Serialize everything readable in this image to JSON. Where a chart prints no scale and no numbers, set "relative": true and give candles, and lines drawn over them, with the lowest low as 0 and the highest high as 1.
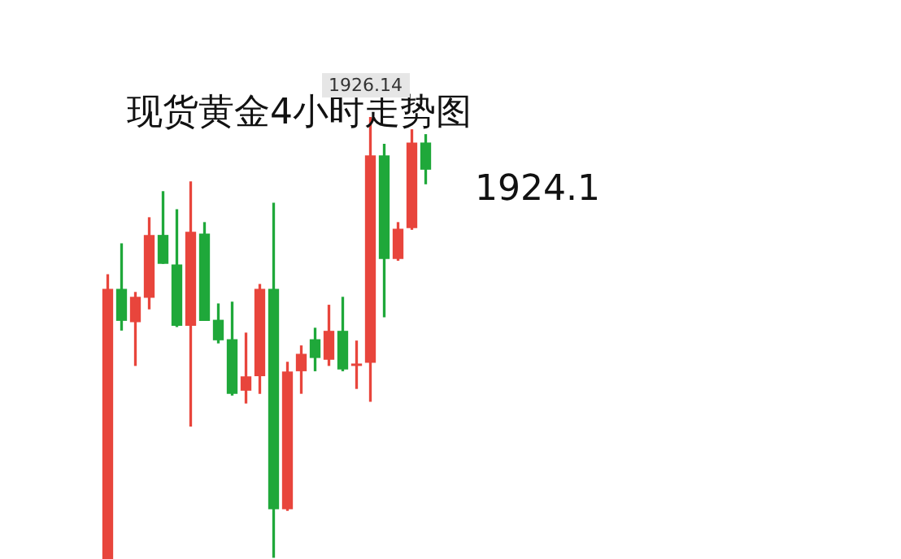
{
  "chart_data": {
    "type": "candlestick",
    "title": "现货黄金4小时走势图",
    "relative": true,
    "categories": [
      null,
      null,
      null,
      null,
      null,
      null,
      null,
      null,
      null,
      null,
      null,
      null,
      null,
      null,
      null,
      null,
      null,
      null,
      null,
      null,
      null,
      null,
      null,
      null
    ],
    "ohlc": [
      [
        0,
        0.643,
        0,
        0.61
      ],
      [
        0.61,
        0.713,
        0.518,
        0.54
      ],
      [
        0.537,
        0.603,
        0.438,
        0.592
      ],
      [
        0.592,
        0.772,
        0.566,
        0.732
      ],
      [
        0.732,
        0.831,
        0.669,
        0.669
      ],
      [
        0.665,
        0.79,
        0.526,
        0.529
      ],
      [
        0.529,
        0.853,
        0.301,
        0.739
      ],
      [
        0.735,
        0.761,
        0.54,
        0.54
      ],
      [
        0.54,
        0.577,
        0.489,
        0.496
      ],
      [
        0.496,
        0.581,
        0.371,
        0.375
      ],
      [
        0.382,
        0.511,
        0.353,
        0.412
      ],
      [
        0.415,
        0.621,
        0.375,
        0.61
      ],
      [
        0.61,
        0.805,
        0.004,
        0.114
      ],
      [
        0.114,
        0.445,
        0.11,
        0.423
      ],
      [
        0.426,
        0.482,
        0.375,
        0.463
      ],
      [
        0.496,
        0.522,
        0.426,
        0.456
      ],
      [
        0.452,
        0.574,
        0.438,
        0.515
      ],
      [
        0.515,
        0.592,
        0.426,
        0.43
      ],
      [
        0.438,
        0.493,
        0.386,
        0.441
      ],
      [
        0.445,
        1,
        0.357,
        0.912
      ],
      [
        0.912,
        0.938,
        0.548,
        0.68
      ],
      [
        0.68,
        0.761,
        0.676,
        0.746
      ],
      [
        0.75,
        0.971,
        0.746,
        0.941
      ],
      [
        0.941,
        0.96,
        0.849,
        0.882
      ]
    ],
    "colors": [
      "#e8453c",
      "#1fa83a",
      "#e8453c",
      "#e8453c",
      "#1fa83a",
      "#1fa83a",
      "#e8453c",
      "#1fa83a",
      "#1fa83a",
      "#1fa83a",
      "#e8453c",
      "#e8453c",
      "#1fa83a",
      "#e8453c",
      "#e8453c",
      "#1fa83a",
      "#e8453c",
      "#1fa83a",
      "#e8453c",
      "#e8453c",
      "#1fa83a",
      "#e8453c",
      "#e8453c",
      "#1fa83a"
    ],
    "annotations": [
      "1926.14",
      "1924.1"
    ]
  }
}
